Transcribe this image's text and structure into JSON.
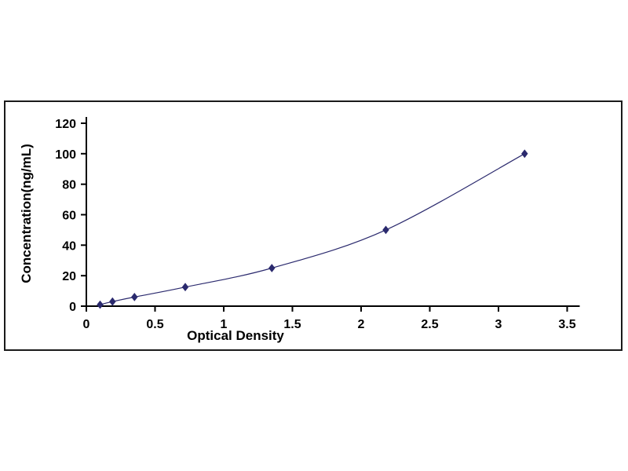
{
  "chart_data": {
    "type": "line",
    "title": "",
    "xlabel": "Optical Density",
    "ylabel": "Concentration(ng/mL)",
    "xlim": [
      0,
      3.5
    ],
    "ylim": [
      0,
      120
    ],
    "x_ticks": [
      0,
      0.5,
      1,
      1.5,
      2,
      2.5,
      3,
      3.5
    ],
    "y_ticks": [
      0,
      20,
      40,
      60,
      80,
      100,
      120
    ],
    "grid": false,
    "legend": "none",
    "marker": "diamond",
    "points": [
      {
        "x": 0.1,
        "y": 1
      },
      {
        "x": 0.19,
        "y": 3
      },
      {
        "x": 0.35,
        "y": 6
      },
      {
        "x": 0.72,
        "y": 12.5
      },
      {
        "x": 1.35,
        "y": 25
      },
      {
        "x": 2.18,
        "y": 50
      },
      {
        "x": 3.19,
        "y": 100
      }
    ],
    "colors": {
      "line": "#2b2a6e",
      "marker": "#2b2a6e",
      "axis": "#000000",
      "tick_text": "#000000",
      "frame_border": "#1a1a1a",
      "background": "#ffffff"
    }
  }
}
